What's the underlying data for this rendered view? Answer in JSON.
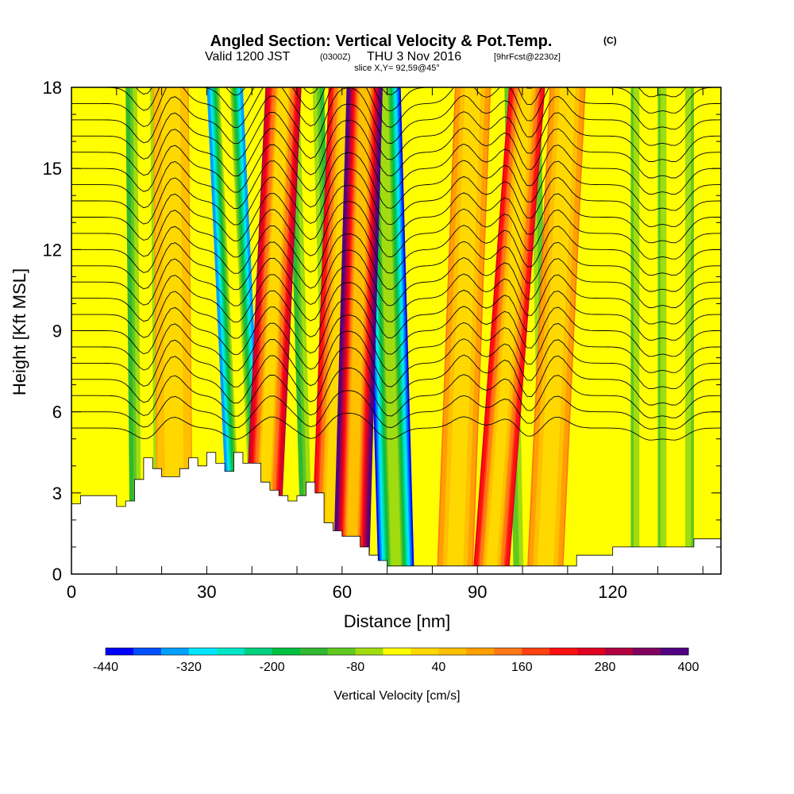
{
  "title": {
    "main": "Angled Section: Vertical Velocity & Pot.Temp.",
    "main_tag": "(C)",
    "valid_a": "Valid 1200 JST",
    "valid_b": "(0300Z)",
    "valid_c": "THU 3 Nov 2016",
    "valid_d": "[9hrFcst@2230z]",
    "slice": "slice X,Y= 92,59@45°"
  },
  "colors": {
    "background_field": "#ffff00",
    "terrain": "#ffffff",
    "contour": "#000000"
  },
  "chart_data": {
    "type": "heatmap",
    "xlabel": "Distance [nm]",
    "ylabel": "Height [Kft MSL]",
    "xlim": [
      0,
      144
    ],
    "ylim": [
      0,
      18
    ],
    "x_ticks": [
      "0",
      "30",
      "60",
      "90",
      "120"
    ],
    "y_ticks": [
      "0",
      "3",
      "6",
      "9",
      "12",
      "15",
      "18"
    ],
    "colorbar": {
      "label": "Vertical Velocity [cm/s]",
      "tick_labels": [
        "-440",
        "-320",
        "-200",
        "-80",
        "40",
        "160",
        "280",
        "400"
      ],
      "colors": [
        "#0000ff",
        "#0050ff",
        "#00a0ff",
        "#00e6ff",
        "#00e6c8",
        "#00d080",
        "#00c040",
        "#30b830",
        "#60c820",
        "#a0dc10",
        "#ffff00",
        "#ffd800",
        "#ffc000",
        "#ffa000",
        "#ff7818",
        "#ff4010",
        "#ff1010",
        "#e00020",
        "#b00040",
        "#800060",
        "#500080"
      ]
    },
    "updraft_bands": [
      {
        "x_base": 42,
        "x_top": 47,
        "w_max": 300
      },
      {
        "x_base": 57,
        "x_top": 61,
        "w_max": 260
      },
      {
        "x_base": 62,
        "x_top": 65,
        "w_max": 400
      },
      {
        "x_base": 93,
        "x_top": 101,
        "w_max": 260
      },
      {
        "x_base": 85,
        "x_top": 89,
        "w_max": 120
      },
      {
        "x_base": 105,
        "x_top": 110,
        "w_max": 120
      },
      {
        "x_base": 23,
        "x_top": 22,
        "w_max": 80
      }
    ],
    "downdraft_bands": [
      {
        "x_base": 39,
        "x_top": 34,
        "w_min": -360
      },
      {
        "x_base": 72,
        "x_top": 69,
        "w_min": -440
      },
      {
        "x_base": 55,
        "x_top": 52,
        "w_min": -160
      },
      {
        "x_base": 17,
        "x_top": 16,
        "w_min": -160
      },
      {
        "x_base": 102,
        "x_top": 100,
        "w_min": -120
      },
      {
        "x_base": 128,
        "x_top": 128,
        "w_min": -100
      },
      {
        "x_base": 134,
        "x_top": 134,
        "w_min": -100
      }
    ],
    "terrain_profile": {
      "x": [
        0,
        2,
        2,
        10,
        10,
        12,
        12,
        14,
        14,
        16,
        16,
        18,
        18,
        20,
        20,
        24,
        24,
        26,
        26,
        28,
        28,
        30,
        30,
        32,
        32,
        34,
        34,
        36,
        36,
        38,
        38,
        42,
        42,
        44,
        44,
        46,
        46,
        48,
        48,
        50,
        50,
        52,
        52,
        54,
        54,
        56,
        56,
        58,
        58,
        60,
        60,
        64,
        64,
        66,
        66,
        68,
        68,
        70,
        70,
        72,
        72,
        112,
        112,
        116,
        116,
        120,
        120,
        128,
        128,
        138,
        138,
        144
      ],
      "height": [
        2.6,
        2.6,
        2.9,
        2.9,
        2.5,
        2.5,
        2.7,
        2.7,
        3.5,
        3.5,
        4.3,
        4.3,
        3.9,
        3.9,
        3.6,
        3.6,
        3.9,
        3.9,
        4.3,
        4.3,
        4.0,
        4.0,
        4.5,
        4.5,
        4.1,
        4.1,
        3.8,
        3.8,
        4.5,
        4.5,
        4.1,
        4.1,
        3.4,
        3.4,
        3.1,
        3.1,
        2.9,
        2.9,
        2.7,
        2.7,
        2.9,
        2.9,
        3.4,
        3.4,
        3.0,
        3.0,
        1.9,
        1.9,
        1.6,
        1.6,
        1.4,
        1.4,
        1.0,
        1.0,
        0.7,
        0.7,
        0.5,
        0.5,
        0.3,
        0.3,
        0.3,
        0.3,
        0.7,
        0.7,
        0.7,
        0.7,
        1.0,
        1.0,
        1.0,
        1.0,
        1.3,
        1.3
      ]
    }
  }
}
